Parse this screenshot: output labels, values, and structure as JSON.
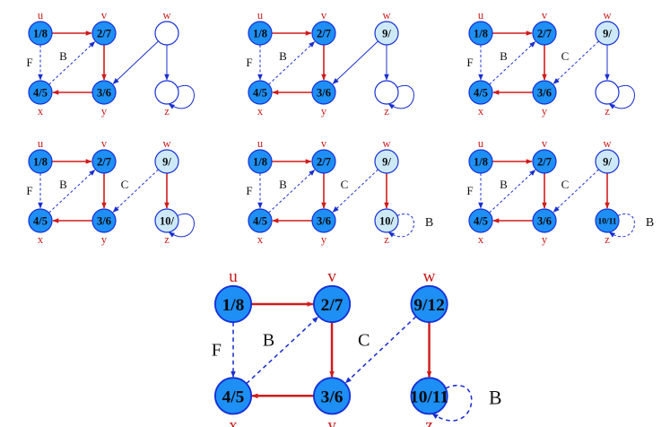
{
  "colors": {
    "finished_fill": "#1e8ff5",
    "visiting_fill": "#cde9f7",
    "white_fill": "#ffffff",
    "node_stroke": "#1630d6",
    "tree_edge": "#d01c1c",
    "other_edge": "#1a2fd0",
    "name_label": "#c81a1a",
    "edge_label": "#111111"
  },
  "legend": {
    "tree_edge": "solid-red",
    "forward_back_cross_edge": "dashed-blue",
    "unexplored_edge": "solid-blue"
  },
  "panels": [
    {
      "nodes": {
        "u": {
          "name": "u",
          "text": "1/8",
          "state": "finished"
        },
        "v": {
          "name": "v",
          "text": "2/7",
          "state": "finished"
        },
        "w": {
          "name": "w",
          "text": "",
          "state": "white"
        },
        "x": {
          "name": "x",
          "text": "4/5",
          "state": "finished"
        },
        "y": {
          "name": "y",
          "text": "3/6",
          "state": "finished"
        },
        "z": {
          "name": "z",
          "text": "",
          "state": "white"
        }
      },
      "edges": [
        {
          "from": "u",
          "to": "v",
          "type": "tree",
          "label": ""
        },
        {
          "from": "v",
          "to": "y",
          "type": "tree",
          "label": ""
        },
        {
          "from": "y",
          "to": "x",
          "type": "tree",
          "label": ""
        },
        {
          "from": "u",
          "to": "x",
          "type": "forward",
          "label": "F"
        },
        {
          "from": "x",
          "to": "v",
          "type": "back",
          "label": "B"
        },
        {
          "from": "w",
          "to": "y",
          "type": "unexplored",
          "label": ""
        },
        {
          "from": "w",
          "to": "z",
          "type": "unexplored",
          "label": ""
        },
        {
          "from": "z",
          "to": "z",
          "type": "unexplored-self",
          "label": ""
        }
      ]
    },
    {
      "nodes": {
        "u": {
          "name": "u",
          "text": "1/8",
          "state": "finished"
        },
        "v": {
          "name": "v",
          "text": "2/7",
          "state": "finished"
        },
        "w": {
          "name": "w",
          "text": "9/",
          "state": "visiting"
        },
        "x": {
          "name": "x",
          "text": "4/5",
          "state": "finished"
        },
        "y": {
          "name": "y",
          "text": "3/6",
          "state": "finished"
        },
        "z": {
          "name": "z",
          "text": "",
          "state": "white"
        }
      },
      "edges": [
        {
          "from": "u",
          "to": "v",
          "type": "tree",
          "label": ""
        },
        {
          "from": "v",
          "to": "y",
          "type": "tree",
          "label": ""
        },
        {
          "from": "y",
          "to": "x",
          "type": "tree",
          "label": ""
        },
        {
          "from": "u",
          "to": "x",
          "type": "forward",
          "label": "F"
        },
        {
          "from": "x",
          "to": "v",
          "type": "back",
          "label": "B"
        },
        {
          "from": "w",
          "to": "y",
          "type": "unexplored",
          "label": ""
        },
        {
          "from": "w",
          "to": "z",
          "type": "unexplored",
          "label": ""
        },
        {
          "from": "z",
          "to": "z",
          "type": "unexplored-self",
          "label": ""
        }
      ]
    },
    {
      "nodes": {
        "u": {
          "name": "u",
          "text": "1/8",
          "state": "finished"
        },
        "v": {
          "name": "v",
          "text": "2/7",
          "state": "finished"
        },
        "w": {
          "name": "w",
          "text": "9/",
          "state": "visiting"
        },
        "x": {
          "name": "x",
          "text": "4/5",
          "state": "finished"
        },
        "y": {
          "name": "y",
          "text": "3/6",
          "state": "finished"
        },
        "z": {
          "name": "z",
          "text": "",
          "state": "white"
        }
      },
      "edges": [
        {
          "from": "u",
          "to": "v",
          "type": "tree",
          "label": ""
        },
        {
          "from": "v",
          "to": "y",
          "type": "tree",
          "label": ""
        },
        {
          "from": "y",
          "to": "x",
          "type": "tree",
          "label": ""
        },
        {
          "from": "u",
          "to": "x",
          "type": "forward",
          "label": "F"
        },
        {
          "from": "x",
          "to": "v",
          "type": "back",
          "label": "B"
        },
        {
          "from": "w",
          "to": "y",
          "type": "cross",
          "label": "C"
        },
        {
          "from": "w",
          "to": "z",
          "type": "unexplored",
          "label": ""
        },
        {
          "from": "z",
          "to": "z",
          "type": "unexplored-self",
          "label": ""
        }
      ]
    },
    {
      "nodes": {
        "u": {
          "name": "u",
          "text": "1/8",
          "state": "finished"
        },
        "v": {
          "name": "v",
          "text": "2/7",
          "state": "finished"
        },
        "w": {
          "name": "w",
          "text": "9/",
          "state": "visiting"
        },
        "x": {
          "name": "x",
          "text": "4/5",
          "state": "finished"
        },
        "y": {
          "name": "y",
          "text": "3/6",
          "state": "finished"
        },
        "z": {
          "name": "z",
          "text": "10/",
          "state": "visiting"
        }
      },
      "edges": [
        {
          "from": "u",
          "to": "v",
          "type": "tree",
          "label": ""
        },
        {
          "from": "v",
          "to": "y",
          "type": "tree",
          "label": ""
        },
        {
          "from": "y",
          "to": "x",
          "type": "tree",
          "label": ""
        },
        {
          "from": "u",
          "to": "x",
          "type": "forward",
          "label": "F"
        },
        {
          "from": "x",
          "to": "v",
          "type": "back",
          "label": "B"
        },
        {
          "from": "w",
          "to": "y",
          "type": "cross",
          "label": "C"
        },
        {
          "from": "w",
          "to": "z",
          "type": "tree",
          "label": ""
        },
        {
          "from": "z",
          "to": "z",
          "type": "unexplored-self",
          "label": ""
        }
      ]
    },
    {
      "nodes": {
        "u": {
          "name": "u",
          "text": "1/8",
          "state": "finished"
        },
        "v": {
          "name": "v",
          "text": "2/7",
          "state": "finished"
        },
        "w": {
          "name": "w",
          "text": "9/",
          "state": "visiting"
        },
        "x": {
          "name": "x",
          "text": "4/5",
          "state": "finished"
        },
        "y": {
          "name": "y",
          "text": "3/6",
          "state": "finished"
        },
        "z": {
          "name": "z",
          "text": "10/",
          "state": "visiting"
        }
      },
      "edges": [
        {
          "from": "u",
          "to": "v",
          "type": "tree",
          "label": ""
        },
        {
          "from": "v",
          "to": "y",
          "type": "tree",
          "label": ""
        },
        {
          "from": "y",
          "to": "x",
          "type": "tree",
          "label": ""
        },
        {
          "from": "u",
          "to": "x",
          "type": "forward",
          "label": "F"
        },
        {
          "from": "x",
          "to": "v",
          "type": "back",
          "label": "B"
        },
        {
          "from": "w",
          "to": "y",
          "type": "cross",
          "label": "C"
        },
        {
          "from": "w",
          "to": "z",
          "type": "tree",
          "label": ""
        },
        {
          "from": "z",
          "to": "z",
          "type": "back-self",
          "label": "B"
        }
      ]
    },
    {
      "nodes": {
        "u": {
          "name": "u",
          "text": "1/8",
          "state": "finished"
        },
        "v": {
          "name": "v",
          "text": "2/7",
          "state": "finished"
        },
        "w": {
          "name": "w",
          "text": "9/",
          "state": "visiting"
        },
        "x": {
          "name": "x",
          "text": "4/5",
          "state": "finished"
        },
        "y": {
          "name": "y",
          "text": "3/6",
          "state": "finished"
        },
        "z": {
          "name": "z",
          "text": "10/11",
          "state": "finished"
        }
      },
      "edges": [
        {
          "from": "u",
          "to": "v",
          "type": "tree",
          "label": ""
        },
        {
          "from": "v",
          "to": "y",
          "type": "tree",
          "label": ""
        },
        {
          "from": "y",
          "to": "x",
          "type": "tree",
          "label": ""
        },
        {
          "from": "u",
          "to": "x",
          "type": "forward",
          "label": "F"
        },
        {
          "from": "x",
          "to": "v",
          "type": "back",
          "label": "B"
        },
        {
          "from": "w",
          "to": "y",
          "type": "cross",
          "label": "C"
        },
        {
          "from": "w",
          "to": "z",
          "type": "tree",
          "label": ""
        },
        {
          "from": "z",
          "to": "z",
          "type": "back-self",
          "label": "B"
        }
      ]
    },
    {
      "nodes": {
        "u": {
          "name": "u",
          "text": "1/8",
          "state": "finished"
        },
        "v": {
          "name": "v",
          "text": "2/7",
          "state": "finished"
        },
        "w": {
          "name": "w",
          "text": "9/12",
          "state": "finished"
        },
        "x": {
          "name": "x",
          "text": "4/5",
          "state": "finished"
        },
        "y": {
          "name": "y",
          "text": "3/6",
          "state": "finished"
        },
        "z": {
          "name": "z",
          "text": "10/11",
          "state": "finished"
        }
      },
      "edges": [
        {
          "from": "u",
          "to": "v",
          "type": "tree",
          "label": ""
        },
        {
          "from": "v",
          "to": "y",
          "type": "tree",
          "label": ""
        },
        {
          "from": "y",
          "to": "x",
          "type": "tree",
          "label": ""
        },
        {
          "from": "u",
          "to": "x",
          "type": "forward",
          "label": "F"
        },
        {
          "from": "x",
          "to": "v",
          "type": "back",
          "label": "B"
        },
        {
          "from": "w",
          "to": "y",
          "type": "cross",
          "label": "C"
        },
        {
          "from": "w",
          "to": "z",
          "type": "tree",
          "label": ""
        },
        {
          "from": "z",
          "to": "z",
          "type": "back-self",
          "label": "B"
        }
      ]
    }
  ]
}
